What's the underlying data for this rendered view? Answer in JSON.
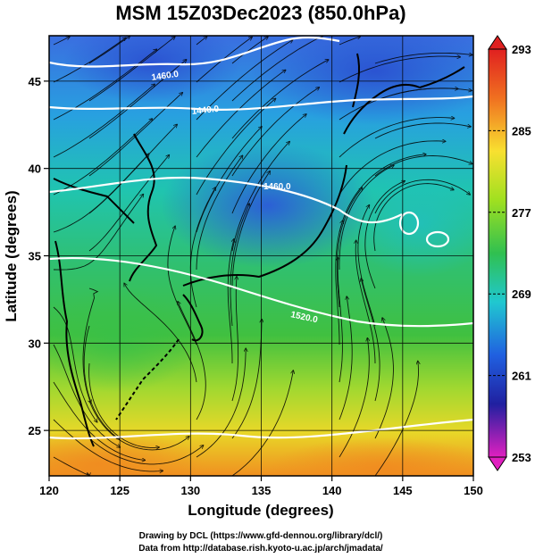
{
  "title": "MSM 15Z03Dec2023 (850.0hPa)",
  "xlabel": "Longitude (degrees)",
  "ylabel": "Latitude  (degrees)",
  "x_ticks": [
    "120",
    "125",
    "130",
    "135",
    "140",
    "145",
    "150"
  ],
  "y_ticks": [
    "25",
    "30",
    "35",
    "40",
    "45"
  ],
  "colorbar": {
    "labels": [
      "293",
      "285",
      "277",
      "269",
      "261",
      "253"
    ],
    "units": ""
  },
  "contour_labels": [
    "1460.0",
    "1440.0",
    "1460.0",
    "1520.0"
  ],
  "credits": {
    "line1": "Drawing by DCL (https://www.gfd-dennou.org/library/dcl/)",
    "line2": "Data from http://database.rish.kyoto-u.ac.jp/arch/jmadata/"
  },
  "chart_data": {
    "type": "heatmap",
    "title": "MSM 15Z03Dec2023 (850.0hPa)",
    "xlabel": "Longitude (degrees)",
    "ylabel": "Latitude  (degrees)",
    "xlim": [
      120,
      150
    ],
    "ylim": [
      22.4,
      47.6
    ],
    "colorbar_range": [
      253,
      293
    ],
    "colorbar_ticks": [
      293,
      285,
      277,
      269,
      261,
      253
    ],
    "overlays": [
      "temperature shading",
      "geopotential height contours (white)",
      "wind streamlines (black)",
      "coastlines",
      "lat/lon grid"
    ],
    "contours": [
      {
        "label": "1460.0",
        "lon": 127.5,
        "lat": 45.4
      },
      {
        "label": "1440.0",
        "lon": 131.8,
        "lat": 44.3
      },
      {
        "label": "1460.0",
        "lon": 136.4,
        "lat": 40.0
      },
      {
        "label": "1520.0",
        "lon": 138.8,
        "lat": 32.2
      }
    ],
    "grid": true
  }
}
